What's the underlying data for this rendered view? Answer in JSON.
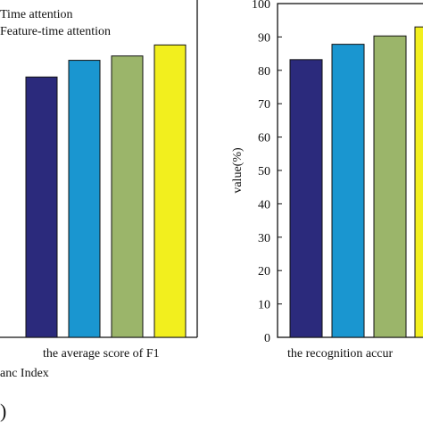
{
  "chart_data": [
    {
      "type": "bar",
      "categories": [
        "the average score of F1"
      ],
      "series": [
        {
          "name": "",
          "values": [
            78
          ]
        },
        {
          "name": "",
          "values": [
            83
          ]
        },
        {
          "name": "",
          "values": [
            84.3
          ]
        },
        {
          "name": "",
          "values": [
            87.6
          ]
        }
      ],
      "legend_entries": [
        "Time attention",
        "Feature-time attention"
      ],
      "xlabel": "anc Index",
      "ylabel": "",
      "ylim": [
        0,
        100
      ],
      "grid": false,
      "legend_placement": "top-left",
      "colors": [
        "#2b2a7c",
        "#1a96d0",
        "#9bb56a",
        "#f2ef1e"
      ]
    },
    {
      "type": "bar",
      "categories": [
        "the recognition accur"
      ],
      "series": [
        {
          "name": "",
          "values": [
            83.2
          ]
        },
        {
          "name": "",
          "values": [
            87.8
          ]
        },
        {
          "name": "",
          "values": [
            90.3
          ]
        },
        {
          "name": "",
          "values": [
            93
          ]
        }
      ],
      "xlabel": "",
      "ylabel": "value(%)",
      "ylim": [
        0,
        100
      ],
      "yticks": [
        0,
        10,
        20,
        30,
        40,
        50,
        60,
        70,
        80,
        90,
        100
      ],
      "grid": false,
      "colors": [
        "#2b2a7c",
        "#1a96d0",
        "#9bb56a",
        "#f2ef1e"
      ]
    }
  ],
  "panel_label": ")"
}
